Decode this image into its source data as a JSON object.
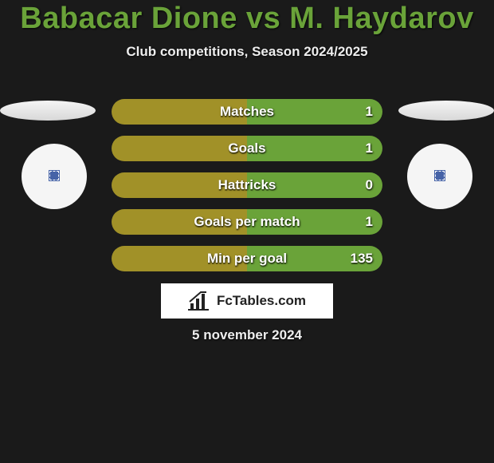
{
  "title": "Babacar Dione vs M. Haydarov",
  "subtitle": "Club competitions, Season 2024/2025",
  "colors": {
    "left": "#a19128",
    "right": "#6aa339",
    "title": "#6aa339",
    "bg": "#1a1a1a"
  },
  "bars": [
    {
      "label": "Matches",
      "left_val": "",
      "right_val": "1",
      "left_pct": 50,
      "right_pct": 50
    },
    {
      "label": "Goals",
      "left_val": "",
      "right_val": "1",
      "left_pct": 50,
      "right_pct": 50
    },
    {
      "label": "Hattricks",
      "left_val": "",
      "right_val": "0",
      "left_pct": 50,
      "right_pct": 50
    },
    {
      "label": "Goals per match",
      "left_val": "",
      "right_val": "1",
      "left_pct": 50,
      "right_pct": 50
    },
    {
      "label": "Min per goal",
      "left_val": "",
      "right_val": "135",
      "left_pct": 50,
      "right_pct": 50
    }
  ],
  "footer": {
    "logo_text": "FcTables.com",
    "date": "5 november 2024"
  }
}
